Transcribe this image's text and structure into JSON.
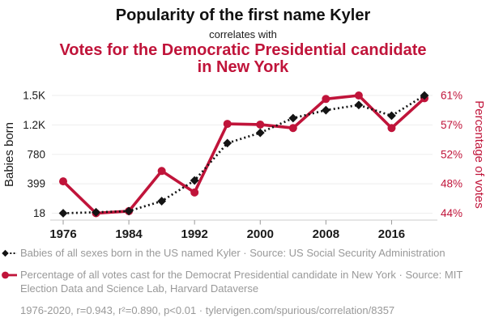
{
  "header": {
    "title": "Popularity of the first name Kyler",
    "connector": "correlates with",
    "subtitle": "Votes for the Democratic Presidential candidate in New York"
  },
  "colors": {
    "accent_red": "#c0143a",
    "series_black": "#141414",
    "legend_text": "#999999",
    "gridline": "#eeeeee",
    "axis_line": "#cccccc",
    "tick_mark": "#999999",
    "tick_label_dark": "#1a1a1a"
  },
  "chart_data": {
    "type": "line",
    "title": "Popularity of the first name Kyler correlates with Votes for the Democratic Presidential candidate in New York",
    "grid": true,
    "legend_position": "bottom",
    "x": [
      1976,
      1980,
      1984,
      1988,
      1992,
      1996,
      2000,
      2004,
      2008,
      2012,
      2016,
      2020
    ],
    "x_axis": {
      "tick_years": [
        1976,
        1984,
        1992,
        2000,
        2008,
        2016
      ],
      "tick_labels": [
        "1976",
        "1984",
        "1992",
        "2000",
        "2008",
        "2016"
      ]
    },
    "left_axis": {
      "label": "Babies born",
      "min": 18,
      "max": 1500,
      "tick_labels_bottom_to_top": [
        "18",
        "399",
        "780",
        "1.2K",
        "1.5K"
      ]
    },
    "right_axis": {
      "label": "Percentage of votes",
      "min": 44,
      "max": 61,
      "tick_labels_bottom_to_top": [
        "44%",
        "48%",
        "52%",
        "57%",
        "61%"
      ]
    },
    "series": [
      {
        "name": "Babies of all sexes born in the US named Kyler",
        "axis": "left",
        "color": "#141414",
        "line_style": "dashed",
        "marker": "diamond",
        "values": [
          18,
          30,
          45,
          170,
          430,
          900,
          1030,
          1215,
          1315,
          1380,
          1245,
          1500
        ]
      },
      {
        "name": "Percentage of all votes cast for the Democrat Presidential candidate in New York",
        "axis": "right",
        "color": "#c0143a",
        "line_style": "solid",
        "marker": "circle",
        "values": [
          48.6,
          44.0,
          44.3,
          50.1,
          47.0,
          56.9,
          56.8,
          56.3,
          60.5,
          61.0,
          56.3,
          60.6
        ]
      }
    ]
  },
  "legend": {
    "series1": "Babies of all sexes born in the US named Kyler · Source: US Social Security Administration",
    "series2": "Percentage of all votes cast for the Democrat Presidential candidate in New York · Source: MIT Election Data and Science Lab, Harvard Dataverse",
    "stats": "1976-2020, r=0.943, r²=0.890, p<0.01 · tylervigen.com/spurious/correlation/8357"
  }
}
